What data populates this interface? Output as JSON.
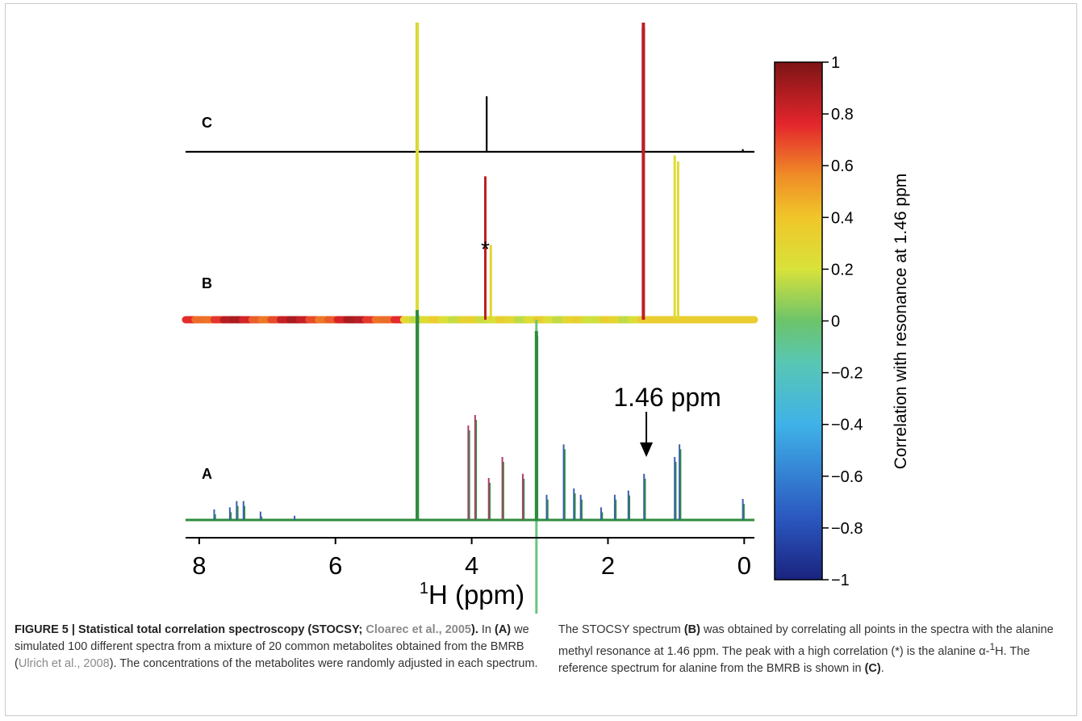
{
  "chart_data": {
    "type": "line",
    "x_label_sup": "1",
    "x_label_main": "H (ppm)",
    "x_ticks": [
      "8",
      "6",
      "4",
      "2",
      "0"
    ],
    "x_tick_values": [
      8,
      6,
      4,
      2,
      0
    ],
    "x_range": [
      8.2,
      -0.15
    ],
    "panel_labels": [
      "C",
      "B",
      "A"
    ],
    "annotations": {
      "star": "*",
      "arrow_label": "1.46 ppm",
      "arrow_ppm": 1.46
    },
    "colorbar": {
      "label": "Correlation with resonance at 1.46 ppm",
      "ticks": [
        "1",
        "0.8",
        "0.6",
        "0.4",
        "0.2",
        "0",
        "−0.2",
        "−0.4",
        "−0.6",
        "−0.8",
        "−1"
      ],
      "range": [
        -1,
        1
      ],
      "colormap": "jet"
    },
    "series": [
      {
        "panel": "C",
        "peaks": [
          {
            "ppm": 4.8,
            "height": 1.0
          },
          {
            "ppm": 3.78,
            "height": 0.43
          },
          {
            "ppm": 1.48,
            "height": 0.96
          },
          {
            "ppm": 0.02,
            "height": 0.02
          }
        ]
      },
      {
        "panel": "B",
        "peaks": [
          {
            "ppm": 4.8,
            "height": 1.0,
            "corr": 0.25
          },
          {
            "ppm": 3.8,
            "height": 0.48,
            "corr": 0.85
          },
          {
            "ppm": 3.72,
            "height": 0.25,
            "corr": 0.3
          },
          {
            "ppm": 1.48,
            "height": 1.0,
            "corr": 0.85
          },
          {
            "ppm": 1.02,
            "height": 0.55,
            "corr": 0.25
          },
          {
            "ppm": 0.97,
            "height": 0.53,
            "corr": 0.25
          },
          {
            "ppm": 3.05,
            "height": -1.0,
            "corr": -0.05
          }
        ]
      },
      {
        "panel": "A",
        "peaks": [
          {
            "ppm": 4.8,
            "height": 1.0
          },
          {
            "ppm": 4.05,
            "height": 0.45
          },
          {
            "ppm": 3.95,
            "height": 0.5
          },
          {
            "ppm": 3.75,
            "height": 0.2
          },
          {
            "ppm": 3.55,
            "height": 0.3
          },
          {
            "ppm": 3.25,
            "height": 0.22
          },
          {
            "ppm": 3.05,
            "height": 0.9
          },
          {
            "ppm": 2.9,
            "height": 0.12
          },
          {
            "ppm": 2.65,
            "height": 0.36
          },
          {
            "ppm": 2.5,
            "height": 0.15
          },
          {
            "ppm": 2.4,
            "height": 0.12
          },
          {
            "ppm": 2.1,
            "height": 0.06
          },
          {
            "ppm": 1.9,
            "height": 0.12
          },
          {
            "ppm": 1.7,
            "height": 0.14
          },
          {
            "ppm": 1.47,
            "height": 0.22
          },
          {
            "ppm": 1.02,
            "height": 0.3
          },
          {
            "ppm": 0.95,
            "height": 0.36
          },
          {
            "ppm": 0.02,
            "height": 0.1
          },
          {
            "ppm": 7.78,
            "height": 0.05
          },
          {
            "ppm": 7.55,
            "height": 0.06
          },
          {
            "ppm": 7.45,
            "height": 0.09
          },
          {
            "ppm": 7.35,
            "height": 0.09
          },
          {
            "ppm": 7.1,
            "height": 0.04
          },
          {
            "ppm": 6.6,
            "height": 0.02
          }
        ]
      }
    ]
  },
  "caption": {
    "fig_label": "FIGURE 5 | Statistical total correlation spectroscopy (STOCSY; ",
    "fig_ref": "Cloarec et al., 2005",
    "fig_label_end": ").",
    "left_1": " In ",
    "left_A": "(A)",
    "left_2": " we simulated 100 different spectra from a mixture of 20 common metabolites obtained from the BMRB (",
    "left_ref": "Ulrich et al., 2008",
    "left_3": "). The concentrations of the metabolites were randomly adjusted in each spectrum.",
    "right_1": "The STOCSY spectrum ",
    "right_B": "(B)",
    "right_2": " was obtained by correlating all points in the spectra with the alanine methyl resonance at 1.46 ppm. The peak with a high correlation (*) is the alanine α-",
    "right_sup": "1",
    "right_3": "H. The reference spectrum for alanine from the BMRB is shown in ",
    "right_C": "(C)",
    "right_4": "."
  }
}
